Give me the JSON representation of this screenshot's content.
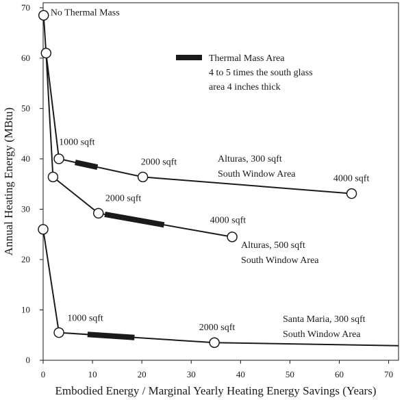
{
  "chart_data": {
    "type": "line",
    "title": "",
    "xlabel": "Embodied Energy / Marginal Yearly Heating Energy Savings  (Years)",
    "ylabel": "Annual Heating Energy  (MBtu)",
    "xlim": [
      0,
      72
    ],
    "ylim": [
      0,
      71
    ],
    "xticks": [
      0,
      10,
      20,
      30,
      40,
      50,
      60,
      70
    ],
    "yticks": [
      0,
      10,
      20,
      30,
      40,
      50,
      60,
      70
    ],
    "grid": false,
    "legend": {
      "label": "Thermal Mass Area",
      "note_line1": "4 to 5 times the south glass",
      "note_line2": "area 4 inches thick",
      "color": "#1a1a1a"
    },
    "series": [
      {
        "name": "Alturas, 300 sqft South Window Area",
        "label_line1": "Alturas, 300 sqft",
        "label_line2": "South Window Area",
        "x": [
          0.1,
          0.6,
          3.2,
          20.2,
          62.5
        ],
        "y": [
          68.5,
          61,
          40,
          36.4,
          33.1
        ],
        "markers": [
          0,
          2,
          3,
          4
        ],
        "thermal_mass_range": [
          6.5,
          11
        ]
      },
      {
        "name": "Alturas, 500 sqft South Window Area",
        "label_line1": "Alturas, 500 sqft",
        "label_line2": "South Window Area",
        "x": [
          0.6,
          2,
          11.2,
          38.3
        ],
        "y": [
          61,
          36.4,
          29.2,
          24.5
        ],
        "markers": [
          0,
          1,
          2,
          3
        ],
        "thermal_mass_range": [
          12.5,
          24.5
        ]
      },
      {
        "name": "Santa Maria, 300 sqft South Window Area",
        "label_line1": "Santa Maria, 300 sqft",
        "label_line2": "South Window Area",
        "x": [
          0,
          3.2,
          34.7,
          72
        ],
        "y": [
          26,
          5.5,
          3.5,
          2.9
        ],
        "markers": [
          0,
          1,
          2
        ],
        "thermal_mass_range": [
          9,
          18.5
        ]
      }
    ],
    "annotations": [
      {
        "text": "No Thermal Mass",
        "x": 1.5,
        "y": 68.5
      },
      {
        "text": "1000 sqft",
        "x": 3.2,
        "y": 42.8
      },
      {
        "text": "2000 sqft",
        "x": 19.8,
        "y": 38.8
      },
      {
        "text": "4000 sqft",
        "x": 58.8,
        "y": 35.6
      },
      {
        "text": "2000 sqft",
        "x": 12.6,
        "y": 31.6
      },
      {
        "text": "4000 sqft",
        "x": 33.8,
        "y": 27.3
      },
      {
        "text": "1000 sqft",
        "x": 4.9,
        "y": 7.8
      },
      {
        "text": "2000 sqft",
        "x": 31.6,
        "y": 6.0
      }
    ]
  }
}
